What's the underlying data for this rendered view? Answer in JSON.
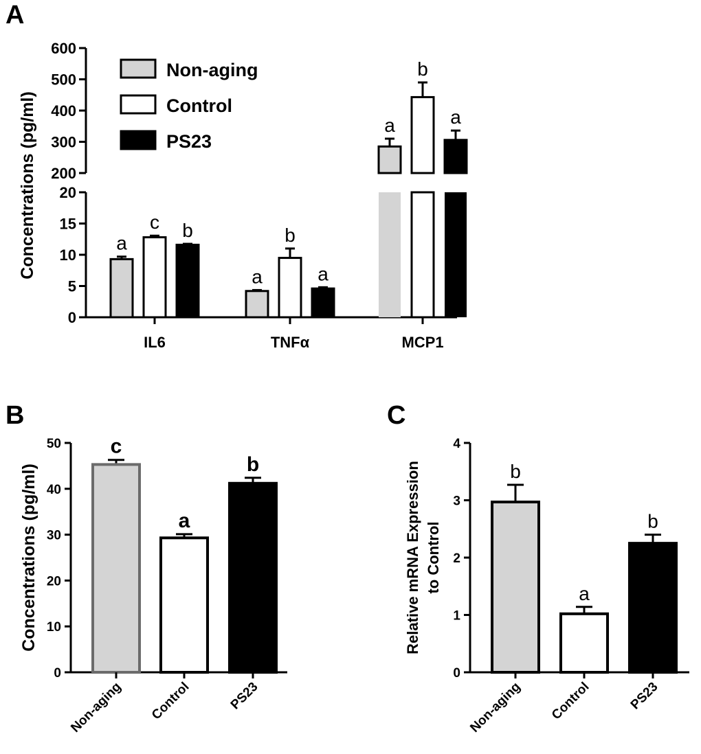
{
  "chart_data": [
    {
      "panel": "A",
      "type": "bar",
      "ylabel": "Concentrations (pg/ml)",
      "categories": [
        "IL6",
        "TNFα",
        "MCP1"
      ],
      "series": [
        {
          "name": "Non-aging",
          "color": "#d4d4d4",
          "values": [
            9.3,
            4.2,
            285
          ],
          "errors": [
            0.4,
            0.15,
            25
          ],
          "letters": [
            "a",
            "a",
            "a"
          ]
        },
        {
          "name": "Control",
          "color": "#ffffff",
          "values": [
            12.8,
            9.5,
            443
          ],
          "errors": [
            0.25,
            1.5,
            47
          ],
          "letters": [
            "c",
            "b",
            "b"
          ]
        },
        {
          "name": "PS23",
          "color": "#000000",
          "values": [
            11.6,
            4.6,
            306
          ],
          "errors": [
            0.15,
            0.2,
            30
          ],
          "letters": [
            "b",
            "a",
            "a"
          ]
        }
      ],
      "axis_break": {
        "lower_range": [
          0,
          20
        ],
        "upper_range": [
          200,
          600
        ]
      },
      "lower_ticks": [
        "0",
        "5",
        "10",
        "15",
        "20"
      ],
      "upper_ticks": [
        "200",
        "300",
        "400",
        "500",
        "600"
      ]
    },
    {
      "panel": "B",
      "type": "bar",
      "ylabel": "Concentrations (pg/ml)",
      "categories": [
        "Non-aging",
        "Control",
        "PS23"
      ],
      "values": [
        45.3,
        29.3,
        41.2
      ],
      "errors": [
        1.0,
        0.8,
        1.2
      ],
      "letters": [
        "c",
        "a",
        "b"
      ],
      "colors": [
        "#d4d4d4",
        "#ffffff",
        "#000000"
      ],
      "ylim": [
        0,
        50
      ],
      "yticks": [
        "0",
        "10",
        "20",
        "30",
        "40",
        "50"
      ]
    },
    {
      "panel": "C",
      "type": "bar",
      "ylabel_lines": [
        "Relative mRNA Expression",
        "to Control"
      ],
      "categories": [
        "Non-aging",
        "Control",
        "PS23"
      ],
      "values": [
        2.97,
        1.02,
        2.25
      ],
      "errors": [
        0.3,
        0.12,
        0.15
      ],
      "letters": [
        "b",
        "a",
        "b"
      ],
      "colors": [
        "#d4d4d4",
        "#ffffff",
        "#000000"
      ],
      "ylim": [
        0,
        4
      ],
      "yticks": [
        "0",
        "1",
        "2",
        "3",
        "4"
      ]
    }
  ]
}
